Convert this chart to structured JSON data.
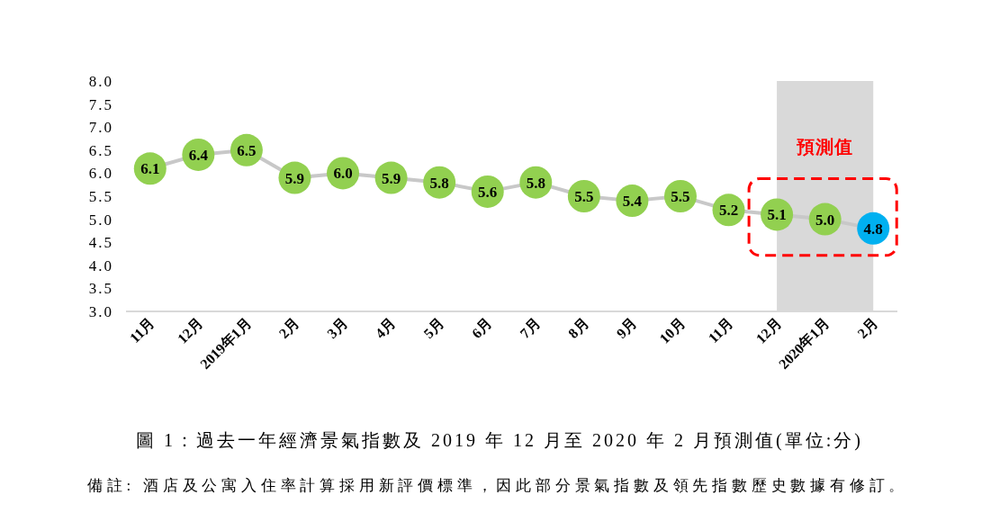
{
  "chart_data": {
    "type": "line",
    "title": "圖 1：過去一年經濟景氣指數及 2019 年 12 月至 2020 年 2 月預測值(單位:分)",
    "annotations": [
      "預測值",
      "備註: 酒店及公寓入住率計算採用新評價標準，因此部分景氣指數及領先指數歷史數據有修訂。"
    ],
    "categories": [
      "11月",
      "12月",
      "2019年1月",
      "2月",
      "3月",
      "4月",
      "5月",
      "6月",
      "7月",
      "8月",
      "9月",
      "10月",
      "11月",
      "12月",
      "2020年1月",
      "2月"
    ],
    "series": [
      {
        "color": "#c8c8c8",
        "colors": [
          "#92d050",
          "#92d050",
          "#92d050",
          "#92d050",
          "#92d050",
          "#92d050",
          "#92d050",
          "#92d050",
          "#92d050",
          "#92d050",
          "#92d050",
          "#92d050",
          "#92d050",
          "#92d050",
          "#92d050",
          "#00b0f0"
        ],
        "values": [
          6.1,
          6.4,
          6.5,
          5.9,
          6.0,
          5.9,
          5.8,
          5.6,
          5.8,
          5.5,
          5.4,
          5.5,
          5.2,
          5.1,
          5.0,
          4.8
        ],
        "value_labels": [
          "6.1",
          "6.4",
          "6.5",
          "5.9",
          "6.0",
          "5.9",
          "5.8",
          "5.6",
          "5.8",
          "5.5",
          "5.4",
          "5.5",
          "5.2",
          "5.1",
          "5.0",
          "4.8"
        ]
      }
    ],
    "ylim": [
      3,
      8
    ],
    "yticks": [
      {
        "value": 3,
        "label": "3.0"
      },
      3.5,
      {
        "value": 4,
        "label": "4.0"
      },
      4.5,
      {
        "value": 5,
        "label": "5.0"
      },
      5.5,
      {
        "value": 6,
        "label": "6.0"
      },
      6.5,
      {
        "value": 7,
        "label": "7.0"
      },
      7.5,
      {
        "value": 8,
        "label": "8.0"
      }
    ],
    "marker": "circle"
  }
}
